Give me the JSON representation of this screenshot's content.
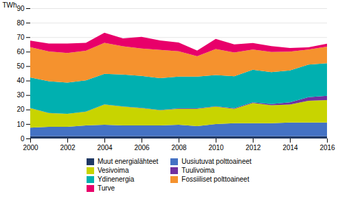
{
  "chart_data": {
    "type": "area",
    "stacked": true,
    "x": [
      2000,
      2001,
      2002,
      2003,
      2004,
      2005,
      2006,
      2007,
      2008,
      2009,
      2010,
      2011,
      2012,
      2013,
      2014,
      2015,
      2016
    ],
    "series": [
      {
        "name": "Muut energialähteet",
        "color": "#1f3864",
        "values": [
          1.5,
          1.5,
          1.5,
          1.5,
          1.5,
          1.5,
          1.5,
          1.5,
          1.5,
          1.5,
          1.5,
          1.5,
          1.5,
          1.5,
          1.5,
          1.5,
          1.5
        ]
      },
      {
        "name": "Uusiutuvat polttoaineet",
        "color": "#4472c4",
        "values": [
          6.0,
          6.5,
          6.5,
          7.5,
          8.0,
          7.5,
          7.5,
          7.5,
          8.0,
          7.0,
          8.5,
          9.0,
          9.0,
          9.0,
          9.5,
          9.5,
          9.5
        ]
      },
      {
        "name": "Vesivoima",
        "color": "#c8d400",
        "values": [
          13.5,
          9.5,
          9.0,
          9.5,
          14.0,
          13.0,
          12.0,
          10.5,
          11.0,
          12.0,
          12.0,
          10.0,
          14.0,
          12.5,
          12.5,
          15.0,
          15.5
        ]
      },
      {
        "name": "Tuulivoima",
        "color": "#7030a0",
        "values": [
          0.1,
          0.1,
          0.1,
          0.1,
          0.1,
          0.2,
          0.2,
          0.2,
          0.3,
          0.3,
          0.3,
          0.5,
          0.5,
          0.8,
          1.5,
          2.5,
          3.0
        ]
      },
      {
        "name": "Ydinenergia",
        "color": "#00b0b0",
        "values": [
          21.0,
          22.0,
          21.5,
          21.5,
          21.0,
          22.0,
          22.0,
          22.0,
          22.0,
          22.0,
          21.5,
          22.0,
          22.5,
          22.0,
          22.0,
          22.5,
          22.5
        ]
      },
      {
        "name": "Fossiiliset polttoaineet",
        "color": "#f5922e",
        "values": [
          21.0,
          20.5,
          20.5,
          20.5,
          21.5,
          19.5,
          19.0,
          19.5,
          17.5,
          14.0,
          18.0,
          16.5,
          14.0,
          14.0,
          13.0,
          10.5,
          11.5
        ]
      },
      {
        "name": "Turve",
        "color": "#e8006a",
        "values": [
          4.5,
          5.5,
          6.5,
          5.5,
          7.0,
          5.5,
          8.0,
          6.5,
          6.0,
          4.0,
          7.0,
          5.5,
          4.5,
          4.0,
          2.5,
          1.5,
          2.0
        ]
      }
    ],
    "ylabel": "TWh",
    "xlim": [
      2000,
      2016
    ],
    "xticks": [
      2000,
      2002,
      2004,
      2006,
      2008,
      2010,
      2012,
      2014,
      2016
    ],
    "ylim": [
      0,
      90
    ],
    "yticks": [
      0,
      10,
      20,
      30,
      40,
      50,
      60,
      70,
      80,
      90
    ],
    "grid": true,
    "legend": "bottom"
  }
}
